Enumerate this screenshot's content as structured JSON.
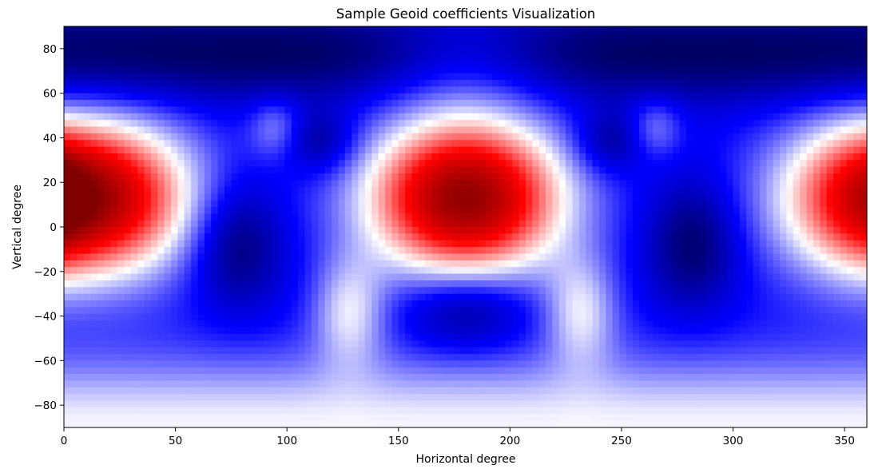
{
  "chart_data": {
    "type": "heatmap",
    "title": "Sample Geoid coefficients Visualization",
    "xlabel": "Horizontal degree",
    "ylabel": "Vertical degree",
    "xlim": [
      0,
      360
    ],
    "ylim": [
      -90,
      90
    ],
    "xticks": [
      0,
      50,
      100,
      150,
      200,
      250,
      300,
      350
    ],
    "yticks": [
      80,
      60,
      40,
      20,
      0,
      -20,
      -40,
      -60,
      -80
    ],
    "xtick_labels": [
      "0",
      "50",
      "100",
      "150",
      "200",
      "250",
      "300",
      "350"
    ],
    "ytick_labels": [
      "80",
      "60",
      "40",
      "20",
      "0",
      "−20",
      "−40",
      "−60",
      "−80"
    ],
    "colormap": "seismic",
    "colors": {
      "low": "#00004c",
      "mid": "#ffffff",
      "high": "#800000"
    },
    "grid": false
  }
}
